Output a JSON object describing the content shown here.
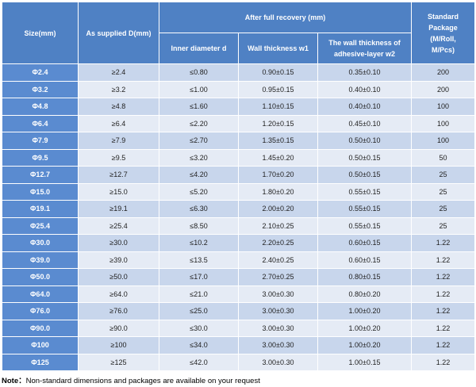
{
  "table": {
    "header": {
      "size": "Size(mm)",
      "supplied": "As supplied D(mm)",
      "recovery": "After full recovery (mm)",
      "inner": "Inner diameter d",
      "wall": "Wall thickness w1",
      "adhesive": [
        "The wall thickness of",
        "adhesive-layer w2"
      ],
      "package": [
        "Standard",
        "Package",
        "(M/Roll,",
        "M/Pcs)"
      ]
    },
    "rows": [
      [
        "Φ2.4",
        "≥2.4",
        "≤0.80",
        "0.90±0.15",
        "0.35±0.10",
        "200"
      ],
      [
        "Φ3.2",
        "≥3.2",
        "≤1.00",
        "0.95±0.15",
        "0.40±0.10",
        "200"
      ],
      [
        "Φ4.8",
        "≥4.8",
        "≤1.60",
        "1.10±0.15",
        "0.40±0.10",
        "100"
      ],
      [
        "Φ6.4",
        "≥6.4",
        "≤2.20",
        "1.20±0.15",
        "0.45±0.10",
        "100"
      ],
      [
        "Φ7.9",
        "≥7.9",
        "≤2.70",
        "1.35±0.15",
        "0.50±0.10",
        "100"
      ],
      [
        "Φ9.5",
        "≥9.5",
        "≤3.20",
        "1.45±0.20",
        "0.50±0.15",
        "50"
      ],
      [
        "Φ12.7",
        "≥12.7",
        "≤4.20",
        "1.70±0.20",
        "0.50±0.15",
        "25"
      ],
      [
        "Φ15.0",
        "≥15.0",
        "≤5.20",
        "1.80±0.20",
        "0.55±0.15",
        "25"
      ],
      [
        "Φ19.1",
        "≥19.1",
        "≤6.30",
        "2.00±0.20",
        "0.55±0.15",
        "25"
      ],
      [
        "Φ25.4",
        "≥25.4",
        "≤8.50",
        "2.10±0.25",
        "0.55±0.15",
        "25"
      ],
      [
        "Φ30.0",
        "≥30.0",
        "≤10.2",
        "2.20±0.25",
        "0.60±0.15",
        "1.22"
      ],
      [
        "Φ39.0",
        "≥39.0",
        "≤13.5",
        "2.40±0.25",
        "0.60±0.15",
        "1.22"
      ],
      [
        "Φ50.0",
        "≥50.0",
        "≤17.0",
        "2.70±0.25",
        "0.80±0.15",
        "1.22"
      ],
      [
        "Φ64.0",
        "≥64.0",
        "≤21.0",
        "3.00±0.30",
        "0.80±0.20",
        "1.22"
      ],
      [
        "Φ76.0",
        "≥76.0",
        "≤25.0",
        "3.00±0.30",
        "1.00±0.20",
        "1.22"
      ],
      [
        "Φ90.0",
        "≥90.0",
        "≤30.0",
        "3.00±0.30",
        "1.00±0.20",
        "1.22"
      ],
      [
        "Φ100",
        "≥100",
        "≤34.0",
        "3.00±0.30",
        "1.00±0.20",
        "1.22"
      ],
      [
        "Φ125",
        "≥125",
        "≤42.0",
        "3.00±0.30",
        "1.00±0.15",
        "1.22"
      ]
    ]
  },
  "note": {
    "label": "Note：",
    "text": "Non-standard dimensions and packages are available on your request"
  }
}
